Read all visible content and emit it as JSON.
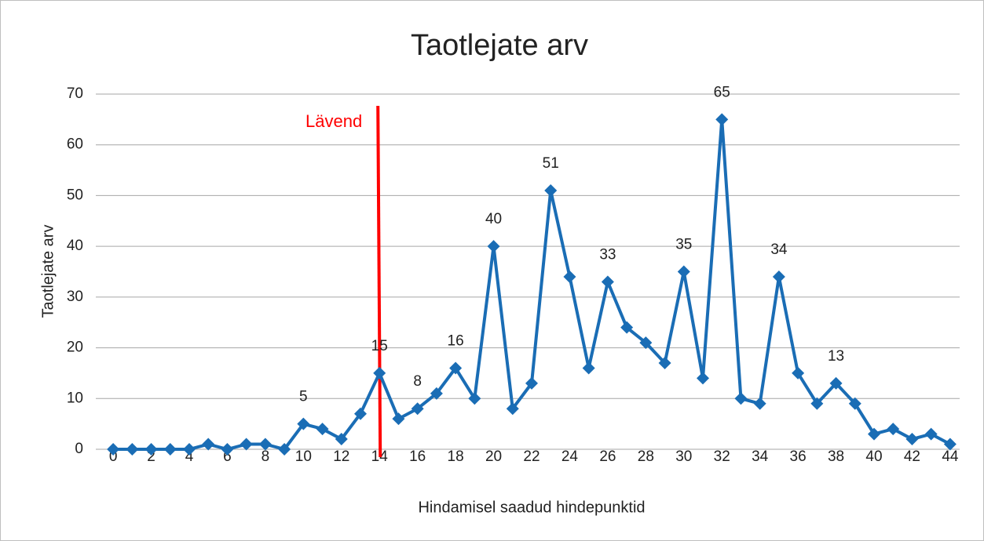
{
  "chart_data": {
    "type": "line",
    "title": "Taotlejate arv",
    "x_label": "Hindamisel saadud hindepunktid",
    "y_label": "Taotlejate arv",
    "x": [
      0,
      1,
      2,
      3,
      4,
      5,
      6,
      7,
      8,
      9,
      10,
      11,
      12,
      13,
      14,
      15,
      16,
      17,
      18,
      19,
      20,
      21,
      22,
      23,
      24,
      25,
      26,
      27,
      28,
      29,
      30,
      31,
      32,
      33,
      34,
      35,
      36,
      37,
      38,
      39,
      40,
      41,
      42,
      43,
      44
    ],
    "series": [
      {
        "name": "Taotlejate arv",
        "color": "#1a6db5",
        "values": [
          0,
          0,
          0,
          0,
          0,
          1,
          0,
          1,
          1,
          0,
          5,
          4,
          2,
          7,
          15,
          6,
          8,
          11,
          16,
          10,
          40,
          8,
          13,
          51,
          34,
          16,
          33,
          24,
          21,
          17,
          35,
          14,
          65,
          10,
          9,
          34,
          15,
          9,
          13,
          9,
          3,
          4,
          2,
          3,
          1
        ]
      }
    ],
    "data_labels": [
      10,
      14,
      16,
      18,
      20,
      23,
      26,
      30,
      32,
      35,
      38
    ],
    "annotation": {
      "text": "Lävend",
      "x": 14,
      "color": "#ff0000"
    },
    "xlim": [
      -0.5,
      44.5
    ],
    "xticks": [
      0,
      2,
      4,
      6,
      8,
      10,
      12,
      14,
      16,
      18,
      20,
      22,
      24,
      26,
      28,
      30,
      32,
      34,
      36,
      38,
      40,
      42,
      44
    ],
    "ylim": [
      0,
      70
    ],
    "yticks": [
      0,
      10,
      20,
      30,
      40,
      50,
      60,
      70
    ],
    "grid": true
  }
}
